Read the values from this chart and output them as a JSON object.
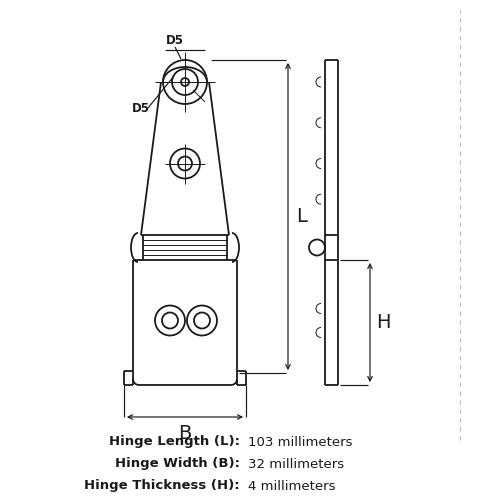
{
  "bg_color": "#ffffff",
  "line_color": "#1a1a1a",
  "dim_color": "#1a1a1a",
  "text_color": "#1a1a1a",
  "specs": [
    {
      "label": "Hinge Length (L):",
      "value": "103 millimeters"
    },
    {
      "label": "Hinge Width (B):",
      "value": "32 millimeters"
    },
    {
      "label": "Hinge Thickness (H):",
      "value": "4 millimeters"
    }
  ],
  "dim_L_label": "L",
  "dim_B_label": "B",
  "dim_H_label": "H",
  "d5_label": "D5",
  "d5_top_label": "D5"
}
